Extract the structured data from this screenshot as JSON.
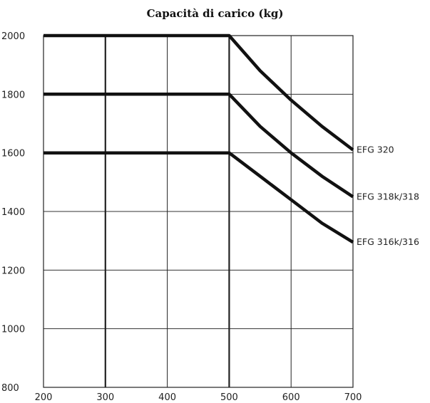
{
  "chart_data": {
    "type": "line",
    "title": "Capacità di carico (kg)",
    "xlabel": "",
    "ylabel": "",
    "xlim": [
      200,
      700
    ],
    "ylim": [
      800,
      2000
    ],
    "x_ticks": [
      200,
      300,
      400,
      500,
      600,
      700
    ],
    "y_ticks": [
      800,
      1000,
      1200,
      1400,
      1600,
      1800,
      2000
    ],
    "x_tick_labels": [
      "200",
      "300",
      "400",
      "500",
      "600",
      "700"
    ],
    "y_tick_labels": [
      "800",
      "1000",
      "1200",
      "1400",
      "1600",
      "1800",
      "2000"
    ],
    "grid": true,
    "emphasized_x_gridlines": [
      300,
      500
    ],
    "series": [
      {
        "name": "EFG 320",
        "x": [
          200,
          500,
          550,
          600,
          650,
          700
        ],
        "y": [
          2000,
          2000,
          1880,
          1780,
          1690,
          1610
        ]
      },
      {
        "name": "EFG 318k/318",
        "x": [
          200,
          500,
          550,
          600,
          650,
          700
        ],
        "y": [
          1800,
          1800,
          1690,
          1600,
          1520,
          1450
        ]
      },
      {
        "name": "EFG 316k/316",
        "x": [
          200,
          500,
          550,
          600,
          650,
          700
        ],
        "y": [
          1600,
          1600,
          1520,
          1440,
          1360,
          1295
        ]
      }
    ]
  }
}
